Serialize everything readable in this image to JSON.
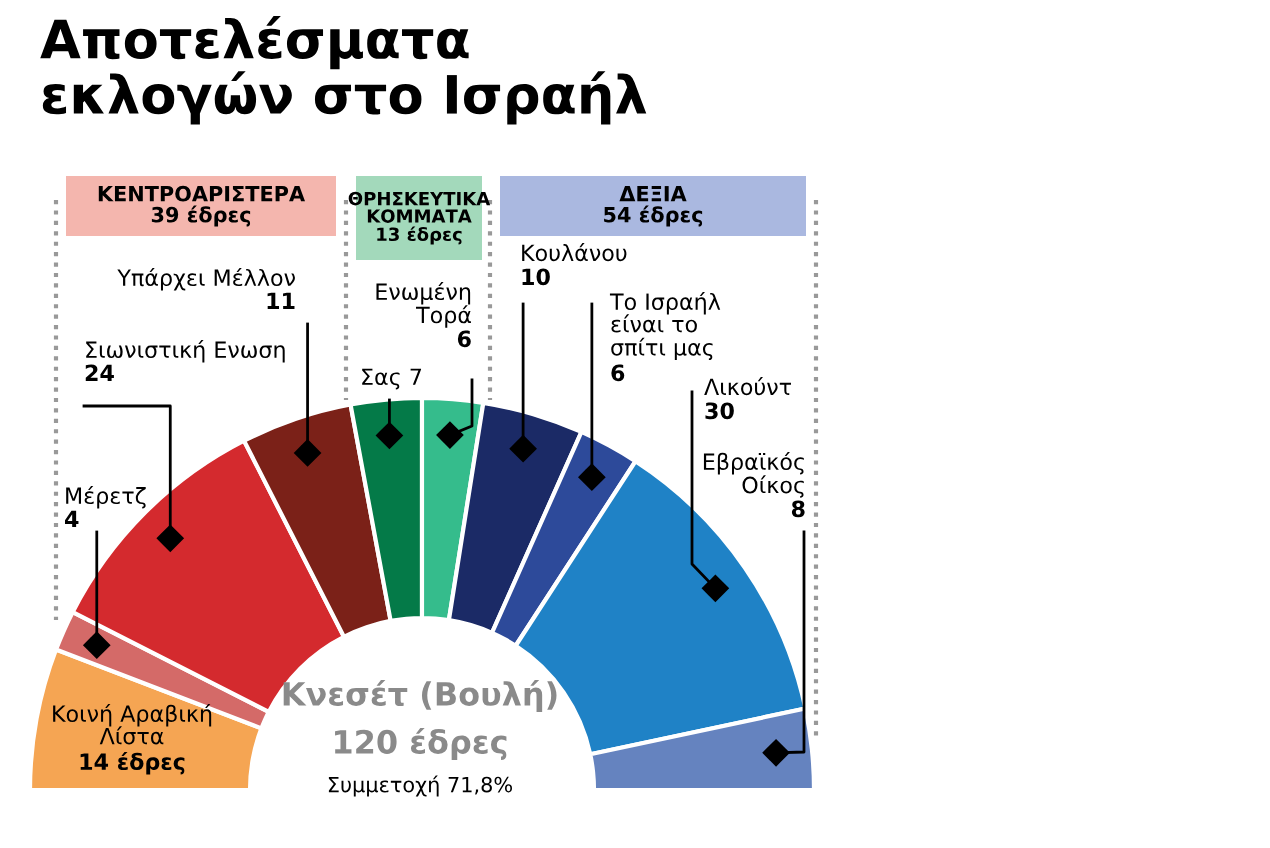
{
  "chart_data": {
    "type": "donut",
    "title": "Αποτελέσματα\nεκλογών στο Ισραήλ",
    "categories": [
      "Κοινή Αραβική\nΛίστα",
      "Μέρετζ",
      "Σιωνιστική Ενωση",
      "Υπάρχει Μέλλον",
      "Σας",
      "Ενωμένη\nΤορά",
      "Κουλάνου",
      "Το Ισραήλ\nείναι το\nσπίτι μας",
      "Λικούντ",
      "Εβραϊκός\nΟίκος"
    ],
    "values": [
      14,
      4,
      24,
      11,
      7,
      6,
      10,
      6,
      30,
      8
    ],
    "value_labels": [
      "14 έδρες",
      "4",
      "24",
      "11",
      "7",
      "6",
      "10",
      "6",
      "30",
      "8"
    ],
    "colors": [
      "#f5a553",
      "#d46a68",
      "#d42a2e",
      "#7b2118",
      "#047a48",
      "#35bc8c",
      "#1b2a66",
      "#2d4a9a",
      "#1f82c6",
      "#6583bf"
    ],
    "annotations": [
      "ΚΕΝΤΡΟΑΡΙΣΤΕΡΑ\n39 έδρες",
      "ΘΡΗΣΚΕΥΤΙΚΑ\nΚΟΜΜΑΤΑ\n13 έδρες",
      "ΔΕΞΙΑ\n54 έδρες",
      "Κνεσέτ (Βουλή)",
      "120 έδρες",
      "Συμμετοχή 71,8%"
    ]
  }
}
